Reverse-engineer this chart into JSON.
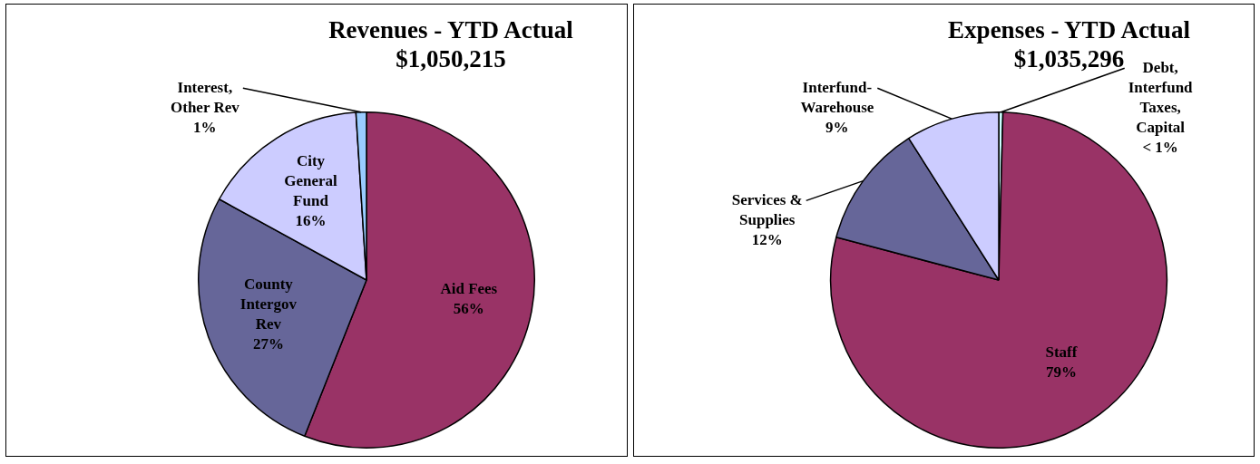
{
  "chart_data": [
    {
      "type": "pie",
      "title": "Revenues - YTD Actual",
      "subtitle": "$1,050,215",
      "categories": [
        "Aid Fees",
        "County Intergov Rev",
        "City General Fund",
        "Interest, Other Rev"
      ],
      "values": [
        56,
        27,
        16,
        1
      ],
      "value_labels": [
        "56%",
        "27%",
        "16%",
        "1%"
      ],
      "colors": [
        "#993366",
        "#666699",
        "#ccccff",
        "#99ccff"
      ]
    },
    {
      "type": "pie",
      "title": "Expenses - YTD Actual",
      "subtitle": "$1,035,296",
      "categories": [
        "Debt, Interfund Taxes, Capital",
        "Staff",
        "Services & Supplies",
        "Interfund-Warehouse"
      ],
      "values": [
        0.4,
        78.7,
        11.9,
        9.0
      ],
      "value_labels": [
        "< 1%",
        "79%",
        "12%",
        "9%"
      ],
      "colors": [
        "#ccffff",
        "#993366",
        "#666699",
        "#ccccff"
      ]
    }
  ]
}
